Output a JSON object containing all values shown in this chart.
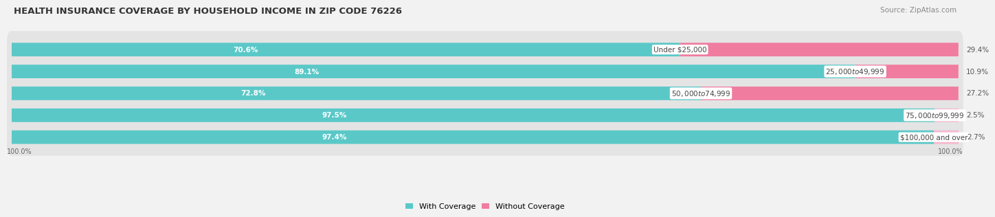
{
  "title": "HEALTH INSURANCE COVERAGE BY HOUSEHOLD INCOME IN ZIP CODE 76226",
  "source": "Source: ZipAtlas.com",
  "categories": [
    "Under $25,000",
    "$25,000 to $49,999",
    "$50,000 to $74,999",
    "$75,000 to $99,999",
    "$100,000 and over"
  ],
  "with_coverage": [
    70.6,
    89.1,
    72.8,
    97.5,
    97.4
  ],
  "without_coverage": [
    29.4,
    10.9,
    27.2,
    2.5,
    2.7
  ],
  "color_with": "#5bc8c8",
  "color_without": "#f07ca0",
  "color_without_light": "#f5b8ce",
  "bg_color": "#f2f2f2",
  "bar_bg": "#e8e8e8",
  "title_fontsize": 9.5,
  "label_fontsize": 7.5,
  "category_fontsize": 7.5,
  "legend_fontsize": 8,
  "source_fontsize": 7.5
}
